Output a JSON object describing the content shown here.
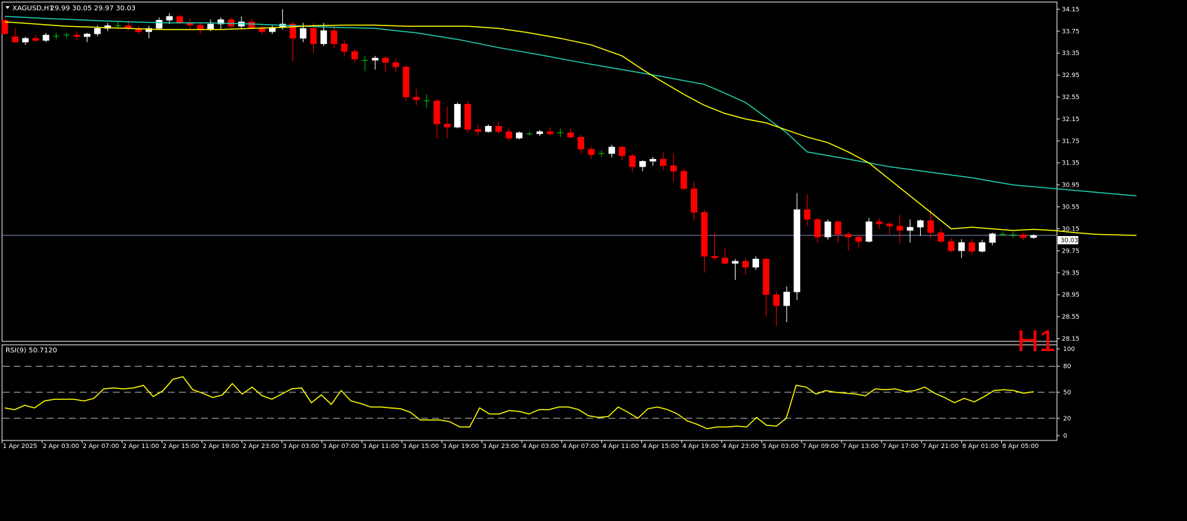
{
  "header": {
    "symbol": "XAGUSD,H1",
    "ohlc": "29.99 30.05 29.97 30.03",
    "timeframe_badge": "H1",
    "current_price": "30.03"
  },
  "rsi_header": {
    "label": "RSI(9) 50.7120"
  },
  "colors": {
    "bg": "#000000",
    "grid": "#ffffff",
    "bull": "#ffffff",
    "bear": "#ff0000",
    "doji": "#00c800",
    "ma_fast": "#ffff00",
    "ma_slow": "#20d0b0",
    "rsi": "#ffff00",
    "price_line": "#7f8fbf",
    "badge": "#ff0000"
  },
  "chart_data": [
    {
      "type": "candlestick",
      "title": "XAGUSD,H1",
      "y_ticks": [
        "34.15",
        "33.75",
        "33.35",
        "32.95",
        "32.55",
        "32.15",
        "31.75",
        "31.35",
        "30.95",
        "30.55",
        "30.15",
        "29.75",
        "29.35",
        "28.95",
        "28.55",
        "28.15"
      ],
      "ylim": [
        28.1,
        34.28
      ],
      "x_labels": [
        "1 Apr 2025",
        "2 Apr 03:00",
        "2 Apr 07:00",
        "2 Apr 11:00",
        "2 Apr 15:00",
        "2 Apr 19:00",
        "2 Apr 23:00",
        "3 Apr 03:00",
        "3 Apr 07:00",
        "3 Apr 11:00",
        "3 Apr 15:00",
        "3 Apr 19:00",
        "3 Apr 23:00",
        "4 Apr 03:00",
        "4 Apr 07:00",
        "4 Apr 11:00",
        "4 Apr 15:00",
        "4 Apr 19:00",
        "4 Apr 23:00",
        "5 Apr 03:00",
        "7 Apr 09:00",
        "7 Apr 13:00",
        "7 Apr 17:00",
        "7 Apr 21:00",
        "8 Apr 01:00",
        "8 Apr 05:00"
      ],
      "candles": [
        [
          33.95,
          34.0,
          33.7,
          33.7
        ],
        [
          33.65,
          33.8,
          33.55,
          33.55
        ],
        [
          33.55,
          33.65,
          33.5,
          33.62
        ],
        [
          33.62,
          33.68,
          33.55,
          33.58
        ],
        [
          33.58,
          33.72,
          33.55,
          33.68
        ],
        [
          33.68,
          33.72,
          33.6,
          33.66
        ],
        [
          33.66,
          33.72,
          33.62,
          33.68
        ],
        [
          33.68,
          33.75,
          33.6,
          33.65
        ],
        [
          33.65,
          33.72,
          33.55,
          33.7
        ],
        [
          33.7,
          33.85,
          33.66,
          33.8
        ],
        [
          33.8,
          33.9,
          33.75,
          33.85
        ],
        [
          33.85,
          33.92,
          33.8,
          33.85
        ],
        [
          33.85,
          33.95,
          33.76,
          33.8
        ],
        [
          33.8,
          33.85,
          33.7,
          33.74
        ],
        [
          33.74,
          33.85,
          33.62,
          33.8
        ],
        [
          33.8,
          34.0,
          33.78,
          33.95
        ],
        [
          33.95,
          34.08,
          33.88,
          34.02
        ],
        [
          34.02,
          34.05,
          33.88,
          33.9
        ],
        [
          33.9,
          33.98,
          33.8,
          33.86
        ],
        [
          33.86,
          33.92,
          33.7,
          33.78
        ],
        [
          33.78,
          33.96,
          33.75,
          33.88
        ],
        [
          33.88,
          34.0,
          33.78,
          33.96
        ],
        [
          33.96,
          34.0,
          33.8,
          33.84
        ],
        [
          33.84,
          34.02,
          33.8,
          33.92
        ],
        [
          33.92,
          33.98,
          33.78,
          33.8
        ],
        [
          33.8,
          33.86,
          33.7,
          33.74
        ],
        [
          33.74,
          33.85,
          33.7,
          33.82
        ],
        [
          33.82,
          34.15,
          33.78,
          33.88
        ],
        [
          33.88,
          33.92,
          33.2,
          33.62
        ],
        [
          33.62,
          33.9,
          33.55,
          33.8
        ],
        [
          33.8,
          33.9,
          33.35,
          33.52
        ],
        [
          33.52,
          33.9,
          33.48,
          33.76
        ],
        [
          33.76,
          33.85,
          33.45,
          33.52
        ],
        [
          33.52,
          33.58,
          33.3,
          33.38
        ],
        [
          33.38,
          33.42,
          33.18,
          33.24
        ],
        [
          33.24,
          33.3,
          33.02,
          33.22
        ],
        [
          33.22,
          33.3,
          33.05,
          33.26
        ],
        [
          33.26,
          33.3,
          33.0,
          33.18
        ],
        [
          33.18,
          33.25,
          33.0,
          33.1
        ],
        [
          33.1,
          33.12,
          32.48,
          32.55
        ],
        [
          32.55,
          32.7,
          32.4,
          32.5
        ],
        [
          32.5,
          32.6,
          32.35,
          32.48
        ],
        [
          32.48,
          32.52,
          31.8,
          32.06
        ],
        [
          32.06,
          32.38,
          31.8,
          32.0
        ],
        [
          32.0,
          32.45,
          31.98,
          32.42
        ],
        [
          32.42,
          32.48,
          31.9,
          31.96
        ],
        [
          31.96,
          32.05,
          31.85,
          31.92
        ],
        [
          31.92,
          32.05,
          31.9,
          32.02
        ],
        [
          32.02,
          32.1,
          31.88,
          31.92
        ],
        [
          31.92,
          31.98,
          31.75,
          31.8
        ],
        [
          31.8,
          31.92,
          31.78,
          31.9
        ],
        [
          31.9,
          31.92,
          31.86,
          31.88
        ],
        [
          31.88,
          31.95,
          31.84,
          31.92
        ],
        [
          31.92,
          32.0,
          31.85,
          31.88
        ],
        [
          31.88,
          31.98,
          31.82,
          31.9
        ],
        [
          31.9,
          31.98,
          31.8,
          31.82
        ],
        [
          31.82,
          31.86,
          31.52,
          31.6
        ],
        [
          31.6,
          31.65,
          31.42,
          31.5
        ],
        [
          31.5,
          31.58,
          31.46,
          31.52
        ],
        [
          31.52,
          31.68,
          31.45,
          31.64
        ],
        [
          31.64,
          31.66,
          31.4,
          31.48
        ],
        [
          31.48,
          31.52,
          31.18,
          31.28
        ],
        [
          31.28,
          31.4,
          31.2,
          31.38
        ],
        [
          31.38,
          31.46,
          31.3,
          31.42
        ],
        [
          31.42,
          31.55,
          31.22,
          31.3
        ],
        [
          31.3,
          31.52,
          31.0,
          31.2
        ],
        [
          31.2,
          31.24,
          30.88,
          30.88
        ],
        [
          30.88,
          31.0,
          30.3,
          30.45
        ],
        [
          30.45,
          30.5,
          29.35,
          29.65
        ],
        [
          29.65,
          30.08,
          29.58,
          29.62
        ],
        [
          29.62,
          29.8,
          29.5,
          29.52
        ],
        [
          29.52,
          29.6,
          29.22,
          29.56
        ],
        [
          29.56,
          29.62,
          29.32,
          29.45
        ],
        [
          29.45,
          29.65,
          29.4,
          29.6
        ],
        [
          29.6,
          29.62,
          28.55,
          28.95
        ],
        [
          28.95,
          29.0,
          28.38,
          28.75
        ],
        [
          28.75,
          29.1,
          28.45,
          29.0
        ],
        [
          29.0,
          30.8,
          28.85,
          30.5
        ],
        [
          30.5,
          30.78,
          30.2,
          30.32
        ],
        [
          30.32,
          30.35,
          29.9,
          30.0
        ],
        [
          30.0,
          30.32,
          29.95,
          30.28
        ],
        [
          30.28,
          30.3,
          29.9,
          30.05
        ],
        [
          30.05,
          30.1,
          29.75,
          30.0
        ],
        [
          30.0,
          30.05,
          29.8,
          29.92
        ],
        [
          29.92,
          30.35,
          29.9,
          30.28
        ],
        [
          30.28,
          30.35,
          30.15,
          30.24
        ],
        [
          30.24,
          30.28,
          30.05,
          30.2
        ],
        [
          30.2,
          30.4,
          29.88,
          30.12
        ],
        [
          30.12,
          30.32,
          29.9,
          30.18
        ],
        [
          30.18,
          30.32,
          30.02,
          30.3
        ],
        [
          30.3,
          30.5,
          29.98,
          30.08
        ],
        [
          30.08,
          30.16,
          29.9,
          29.92
        ],
        [
          29.92,
          29.98,
          29.72,
          29.75
        ],
        [
          29.75,
          29.96,
          29.62,
          29.9
        ],
        [
          29.9,
          29.96,
          29.68,
          29.74
        ],
        [
          29.74,
          29.95,
          29.72,
          29.9
        ],
        [
          29.9,
          30.08,
          29.85,
          30.06
        ],
        [
          30.06,
          30.1,
          30.02,
          30.05
        ],
        [
          30.05,
          30.1,
          29.98,
          30.04
        ],
        [
          30.04,
          30.08,
          29.94,
          29.99
        ],
        [
          29.99,
          30.05,
          29.97,
          30.03
        ]
      ],
      "ma_fast": [
        33.92,
        33.88,
        33.84,
        33.82,
        33.8,
        33.78,
        33.78,
        33.78,
        33.8,
        33.82,
        33.85,
        33.86,
        33.86,
        33.84,
        33.84,
        33.84,
        33.8,
        33.72,
        33.62,
        33.5,
        33.3,
        33.05,
        32.82,
        32.6,
        32.4,
        32.25,
        32.15,
        32.08,
        31.95,
        31.82,
        31.72,
        31.55,
        31.35,
        31.05,
        30.75,
        30.45,
        30.15,
        30.18,
        30.15,
        30.12,
        30.14,
        30.12,
        30.08,
        30.05,
        30.04,
        30.03
      ],
      "ma_fast_idx": [
        0,
        3,
        6,
        9,
        12,
        15,
        18,
        21,
        24,
        27,
        30,
        33,
        36,
        39,
        42,
        45,
        48,
        51,
        54,
        57,
        60,
        62,
        64,
        66,
        68,
        70,
        72,
        74,
        76,
        78,
        80,
        82,
        84,
        86,
        88,
        90,
        92,
        94,
        96,
        98,
        100,
        102,
        104,
        106,
        108,
        110
      ],
      "ma_slow": [
        34.02,
        33.98,
        33.95,
        33.92,
        33.9,
        33.9,
        33.88,
        33.85,
        33.82,
        33.8,
        33.72,
        33.6,
        33.45,
        33.32,
        33.18,
        33.05,
        32.92,
        32.78,
        32.62,
        32.45,
        32.18,
        31.9,
        31.55,
        31.42,
        31.28,
        31.18,
        31.08,
        30.95,
        30.85,
        30.75
      ],
      "ma_slow_idx": [
        0,
        4,
        8,
        12,
        16,
        20,
        24,
        28,
        32,
        36,
        40,
        44,
        48,
        52,
        56,
        60,
        64,
        68,
        70,
        72,
        74,
        76,
        78,
        82,
        86,
        90,
        94,
        98,
        104,
        110
      ],
      "last_price": 30.03
    },
    {
      "type": "line",
      "title": "RSI(9) 50.7120",
      "y_ticks": [
        "100",
        "80",
        "50",
        "20",
        "0"
      ],
      "ylim": [
        0,
        100
      ],
      "levels": [
        80,
        50,
        20
      ],
      "values": [
        32,
        30,
        35,
        32,
        40,
        42,
        42,
        42,
        40,
        43,
        54,
        55,
        54,
        55,
        58,
        45,
        52,
        65,
        68,
        53,
        49,
        44,
        47,
        60,
        48,
        56,
        46,
        42,
        48,
        54,
        55,
        38,
        47,
        36,
        52,
        40,
        37,
        33,
        33,
        32,
        31,
        27,
        18,
        18,
        18,
        16,
        10,
        10,
        32,
        25,
        25,
        29,
        28,
        25,
        30,
        30,
        33,
        33,
        30,
        23,
        21,
        22,
        33,
        27,
        20,
        31,
        33,
        30,
        25,
        17,
        13,
        8,
        10,
        10,
        11,
        10,
        21,
        12,
        11,
        20,
        58,
        56,
        48,
        52,
        50,
        49,
        48,
        46,
        54,
        53,
        54,
        51,
        52,
        56,
        49,
        44,
        38,
        43,
        39,
        45,
        52,
        53,
        52,
        49,
        50.7
      ]
    }
  ]
}
